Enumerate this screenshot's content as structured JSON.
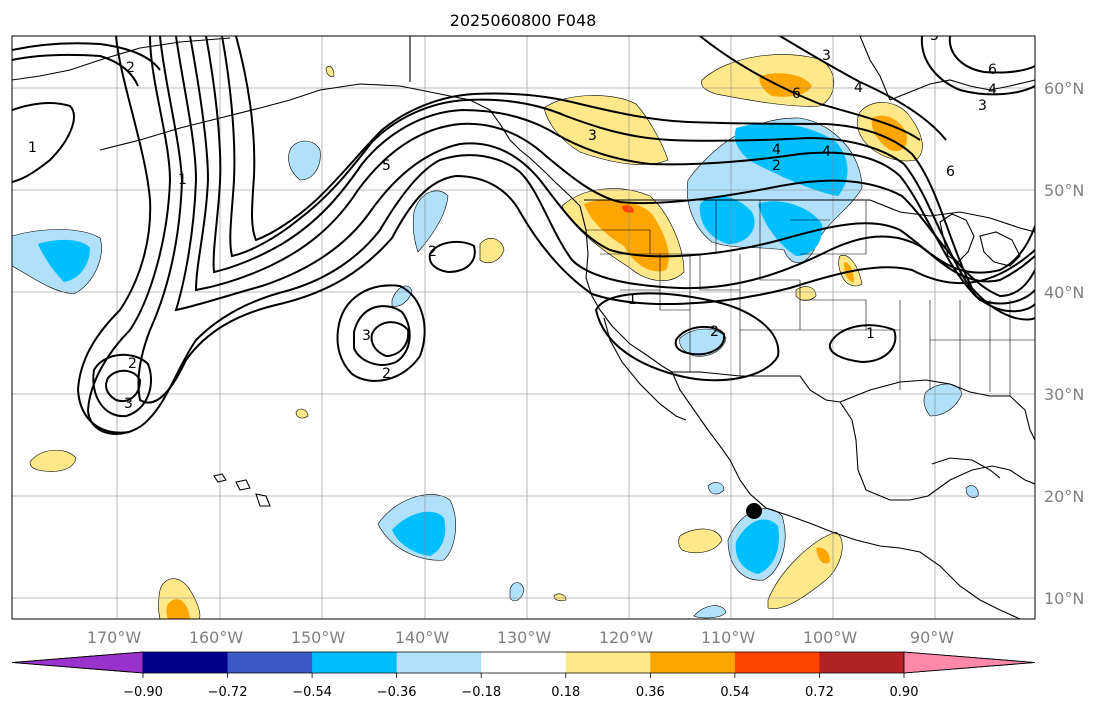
{
  "title": "2025060800 F048",
  "longitude_labels": [
    "170°W",
    "160°W",
    "150°W",
    "140°W",
    "130°W",
    "120°W",
    "110°W",
    "100°W",
    "90°W"
  ],
  "latitude_labels": [
    "60°N",
    "50°N",
    "40°N",
    "30°N",
    "20°N",
    "10°N"
  ],
  "colorbar": {
    "colors": [
      "#9932cc",
      "#00008b",
      "#3a5bc7",
      "#00bfff",
      "#b0e0fa",
      "#ffffff",
      "#ffe88a",
      "#ffa500",
      "#ff4500",
      "#b22222",
      "#ff88aa"
    ],
    "tick_labels": [
      "−0.90",
      "−0.72",
      "−0.54",
      "−0.36",
      "−0.18",
      "0.18",
      "0.36",
      "0.54",
      "0.72",
      "0.90"
    ]
  },
  "contour_labels": [
    "2",
    "1",
    "1",
    "5",
    "2",
    "3",
    "3",
    "2",
    "3",
    "2",
    "1",
    "2",
    "1",
    "3",
    "4",
    "6",
    "4",
    "2",
    "4",
    "3",
    "6",
    "4",
    "3",
    "6"
  ],
  "marker": {
    "label": "point-marker",
    "lon": -107.5,
    "lat": 18.5
  }
}
